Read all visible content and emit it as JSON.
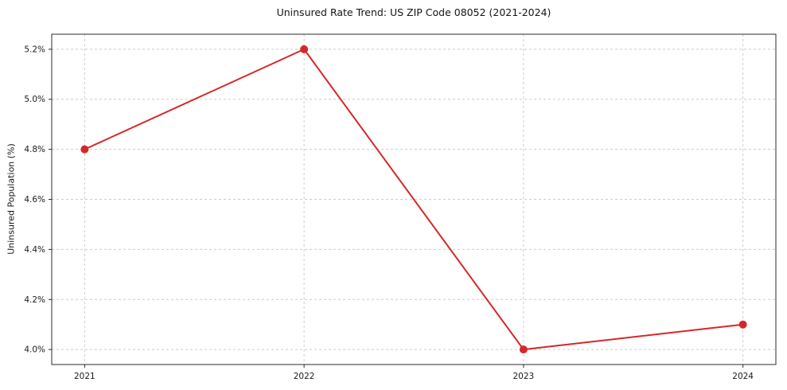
{
  "chart_data": {
    "type": "line",
    "title": "Uninsured Rate Trend: US ZIP Code 08052 (2021-2024)",
    "xlabel": "",
    "ylabel": "Uninsured Population (%)",
    "x": [
      2021,
      2022,
      2023,
      2024
    ],
    "xtick_labels": [
      "2021",
      "2022",
      "2023",
      "2024"
    ],
    "values": [
      4.8,
      5.2,
      4.0,
      4.1
    ],
    "yticks": [
      4.0,
      4.2,
      4.4,
      4.6,
      4.8,
      5.0,
      5.2
    ],
    "ytick_labels": [
      "4.0%",
      "4.2%",
      "4.4%",
      "4.6%",
      "4.8%",
      "5.0%",
      "5.2%"
    ],
    "xlim": [
      2020.85,
      2024.15
    ],
    "ylim": [
      3.94,
      5.26
    ],
    "grid": true,
    "grid_style": "dashed",
    "legend_position": "none",
    "line_color": "#d62728",
    "line_width": 2,
    "marker": "circle",
    "marker_radius": 5,
    "colors": {
      "text": "#1a1a1a",
      "grid": "#cccccc",
      "spine": "#2b2b2b",
      "background": "#ffffff"
    }
  }
}
